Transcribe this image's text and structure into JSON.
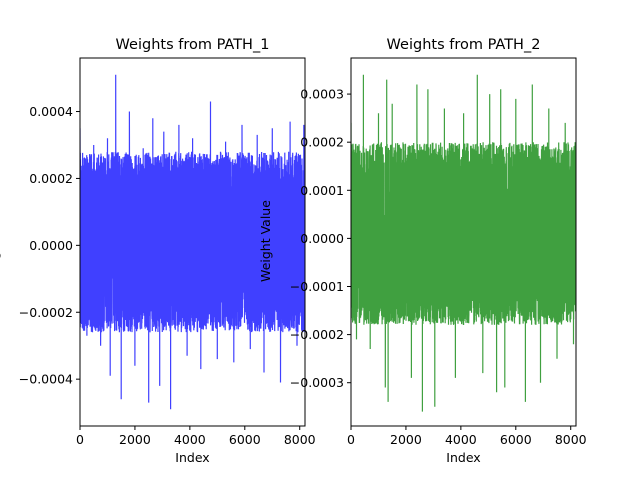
{
  "chart_data": [
    {
      "type": "line",
      "title": "Weights from PATH_1",
      "xlabel": "Index",
      "ylabel": "Weight Value",
      "color": "#0000ff",
      "alpha": 0.75,
      "xlim": [
        0,
        8192
      ],
      "ylim": [
        -0.00054,
        0.00056
      ],
      "xticks": [
        0,
        2000,
        4000,
        6000,
        8000
      ],
      "xtick_labels": [
        "0",
        "2000",
        "4000",
        "6000",
        "8000"
      ],
      "yticks": [
        -0.0004,
        -0.0002,
        0.0,
        0.0002,
        0.0004
      ],
      "ytick_labels": [
        "−0.0004",
        "−0.0002",
        "0.0000",
        "0.0002",
        "0.0004"
      ],
      "series": [
        {
          "approx_count": 8192,
          "band_low": -0.00026,
          "band_high": 0.00028,
          "x": [
            0,
            250,
            500,
            750,
            1000,
            1100,
            1300,
            1500,
            1800,
            2000,
            2300,
            2500,
            2650,
            2900,
            3050,
            3300,
            3600,
            3900,
            4100,
            4400,
            4750,
            5000,
            5300,
            5600,
            5900,
            6200,
            6450,
            6700,
            7000,
            7300,
            7650,
            7900,
            8150
          ],
          "values": [
            0.00035,
            -0.00027,
            0.0003,
            -0.0003,
            0.00032,
            -0.00039,
            0.00051,
            -0.00046,
            0.0004,
            -0.00036,
            0.00029,
            -0.00047,
            0.00038,
            -0.00042,
            0.00034,
            -0.00049,
            0.00036,
            -0.00033,
            0.00032,
            -0.00037,
            0.00043,
            -0.00034,
            0.00031,
            -0.00035,
            0.00036,
            -0.00031,
            0.00033,
            -0.00038,
            0.00035,
            -0.00041,
            0.00037,
            -0.0003,
            0.00036
          ]
        }
      ]
    },
    {
      "type": "line",
      "title": "Weights from PATH_2",
      "xlabel": "Index",
      "ylabel": "Weight Value",
      "color": "#008000",
      "alpha": 0.75,
      "xlim": [
        0,
        8192
      ],
      "ylim": [
        -0.00039,
        0.000375
      ],
      "xticks": [
        0,
        2000,
        4000,
        6000,
        8000
      ],
      "xtick_labels": [
        "0",
        "2000",
        "4000",
        "6000",
        "8000"
      ],
      "yticks": [
        -0.0003,
        -0.0002,
        -0.0001,
        0.0,
        0.0001,
        0.0002,
        0.0003
      ],
      "ytick_labels": [
        "−0.0003",
        "−0.0002",
        "−0.0001",
        "0.0000",
        "0.0001",
        "0.0002",
        "0.0003"
      ],
      "series": [
        {
          "approx_count": 8192,
          "band_low": -0.00018,
          "band_high": 0.0002,
          "x": [
            0,
            200,
            450,
            700,
            1000,
            1250,
            1300,
            1350,
            1500,
            2200,
            2400,
            2600,
            2800,
            3050,
            3400,
            3800,
            4100,
            4600,
            4800,
            5050,
            5300,
            5450,
            5600,
            6000,
            6350,
            6600,
            6900,
            7200,
            7500,
            7800,
            8100
          ],
          "values": [
            0.00024,
            -0.00021,
            0.00034,
            -0.00023,
            0.00026,
            -0.00031,
            0.00033,
            -0.00034,
            0.00028,
            -0.00029,
            0.00032,
            -0.00036,
            0.00031,
            -0.00035,
            0.00027,
            -0.00029,
            0.00026,
            0.00034,
            -0.00028,
            0.0003,
            -0.00032,
            0.00031,
            -0.00031,
            0.00029,
            -0.00034,
            0.00032,
            -0.0003,
            0.00027,
            -0.00025,
            0.00024,
            -0.00022
          ]
        }
      ]
    }
  ]
}
